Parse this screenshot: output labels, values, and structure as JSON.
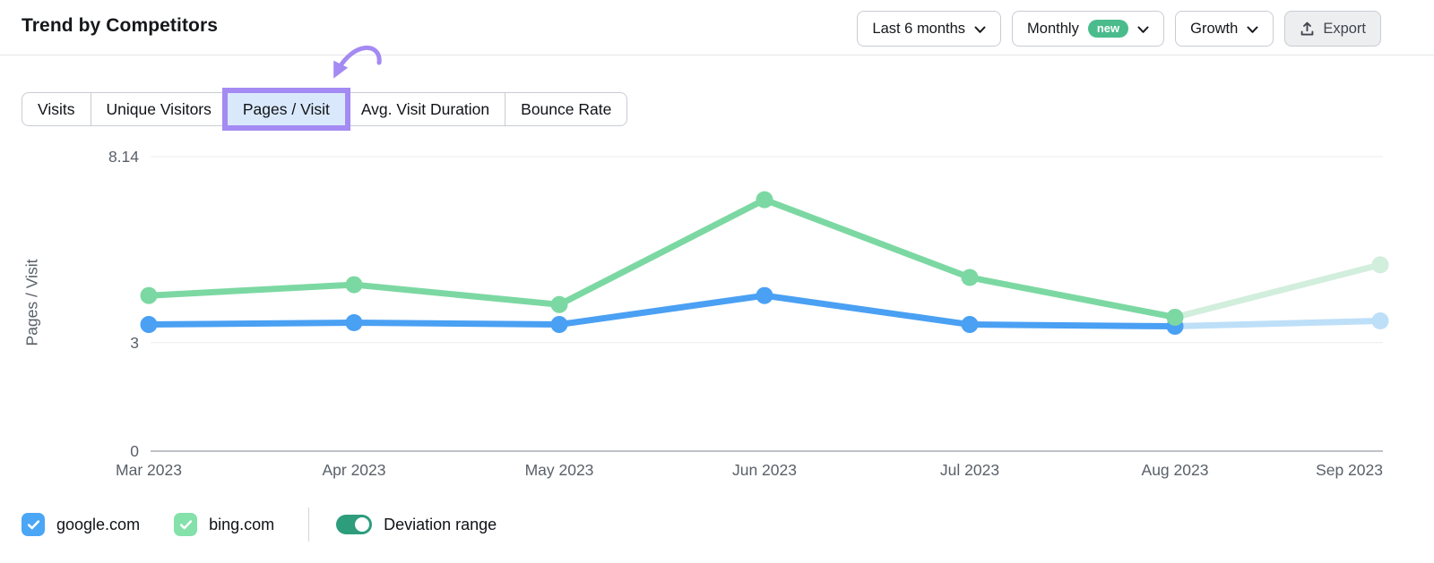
{
  "header": {
    "title": "Trend by Competitors",
    "controls": {
      "period": {
        "label": "Last 6 months"
      },
      "granularity": {
        "label": "Monthly",
        "badge": "new"
      },
      "mode": {
        "label": "Growth"
      },
      "export_label": "Export"
    }
  },
  "tabs": [
    {
      "label": "Visits",
      "selected": false
    },
    {
      "label": "Unique Visitors",
      "selected": false
    },
    {
      "label": "Pages / Visit",
      "selected": true,
      "annotated": true
    },
    {
      "label": "Avg. Visit Duration",
      "selected": false
    },
    {
      "label": "Bounce Rate",
      "selected": false
    }
  ],
  "chart_data": {
    "type": "line",
    "title": "",
    "xlabel": "",
    "ylabel": "Pages / Visit",
    "x": [
      "Mar 2023",
      "Apr 2023",
      "May 2023",
      "Jun 2023",
      "Jul 2023",
      "Aug 2023",
      "Sep 2023"
    ],
    "yticks": [
      8.14,
      3,
      0
    ],
    "ylim": [
      0,
      8.14
    ],
    "grid": "horizontal",
    "legend_position": "bottom-left",
    "series": [
      {
        "name": "google.com",
        "color": "#4aa0f3",
        "faded_color": "#bedff8",
        "values": [
          3.5,
          3.55,
          3.5,
          4.3,
          3.5,
          3.45,
          3.6
        ],
        "forecast_last_segment": true
      },
      {
        "name": "bing.com",
        "color": "#7cd8a2",
        "faded_color": "#d2eedd",
        "values": [
          4.3,
          4.6,
          4.05,
          6.95,
          4.8,
          3.7,
          5.15
        ],
        "forecast_last_segment": true
      }
    ]
  },
  "legend": {
    "items": [
      {
        "label": "google.com",
        "checked": true,
        "color": "#4ba6f5"
      },
      {
        "label": "bing.com",
        "checked": true,
        "color": "#84e1aa"
      }
    ],
    "toggle": {
      "label": "Deviation range",
      "on": true,
      "color": "#2d9d7c"
    }
  },
  "colors": {
    "annotation_purple": "#a48af3",
    "tab_selected_bg": "#d9e9fb",
    "badge_green": "#4abc8c"
  }
}
